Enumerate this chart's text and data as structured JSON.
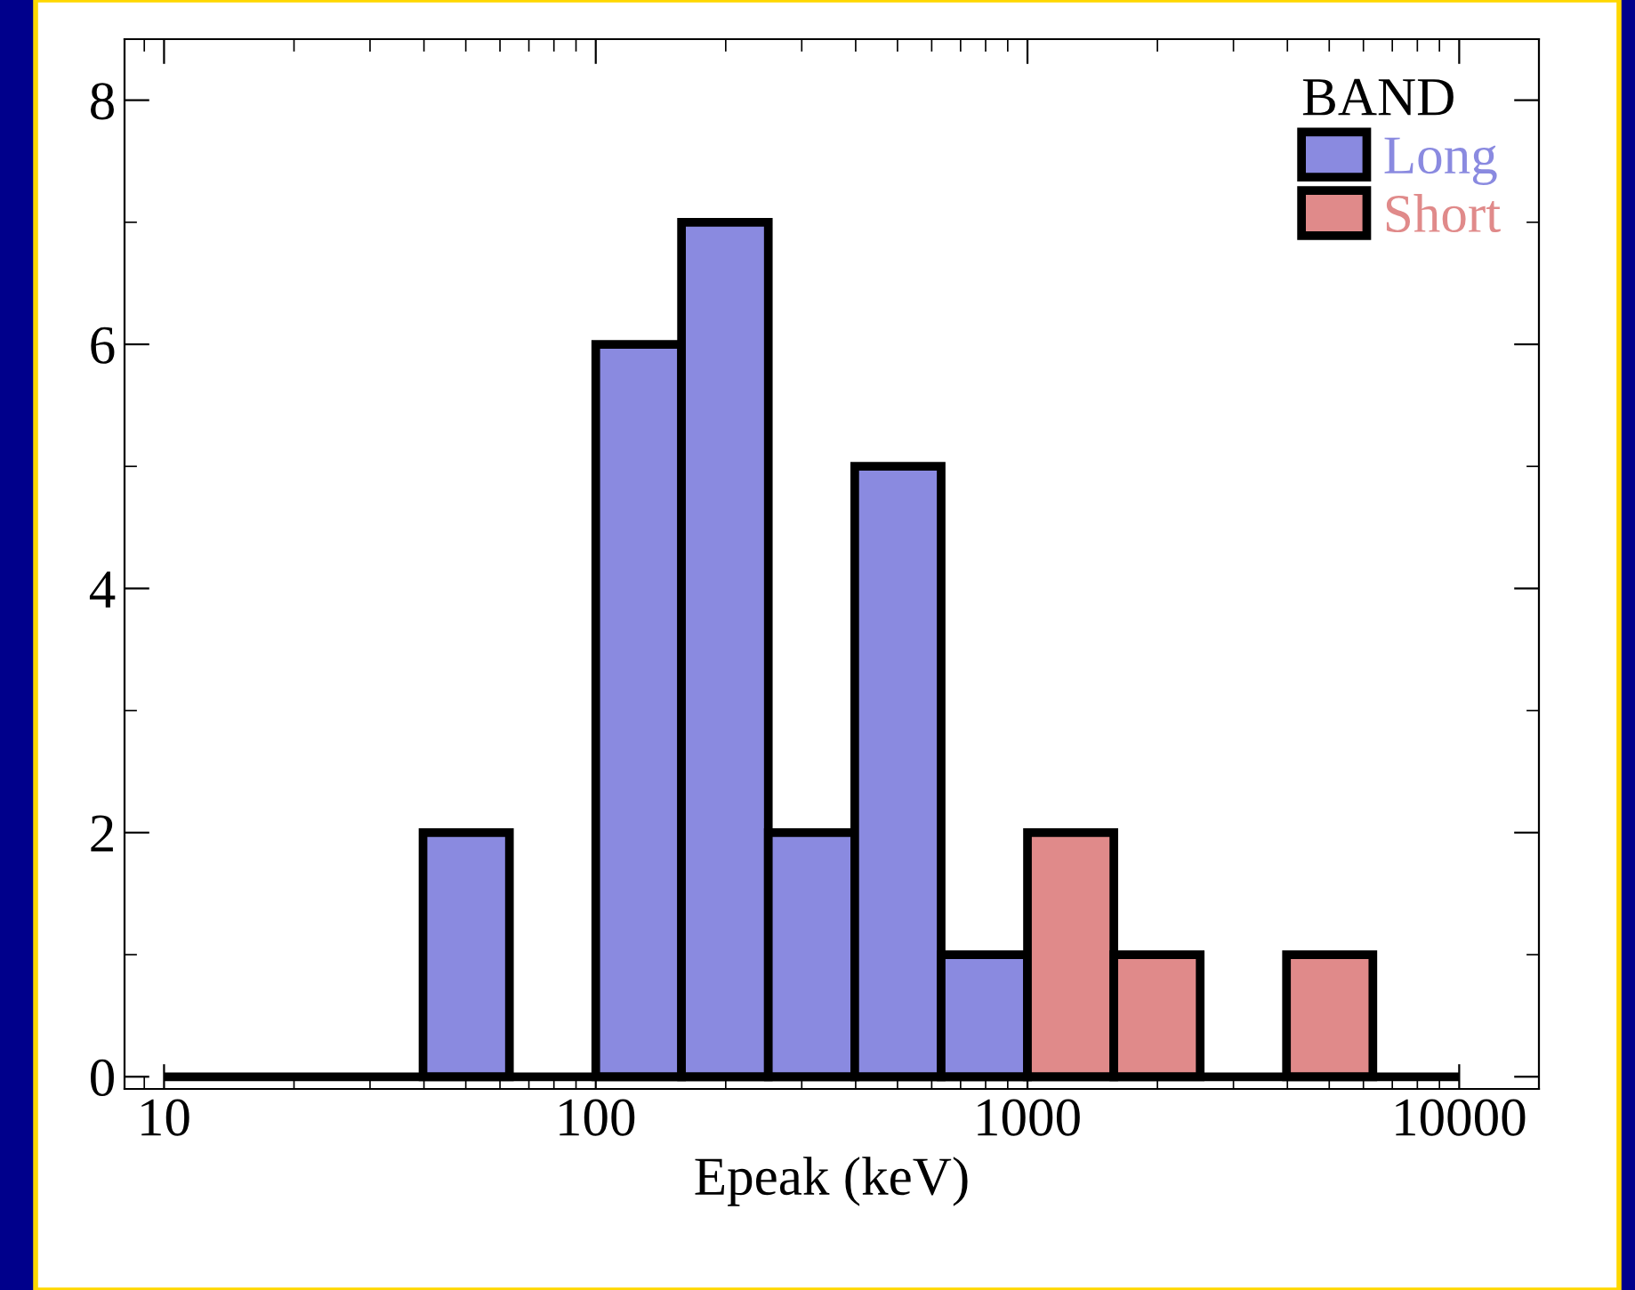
{
  "chart_data": {
    "type": "histogram",
    "xlabel": "Epeak (keV)",
    "log": "x",
    "bins": [
      39.8,
      63.1,
      100,
      158,
      251,
      398,
      631,
      1000,
      1585,
      2512,
      3981,
      6310
    ],
    "legend_title": "BAND",
    "series": [
      {
        "name": "Long",
        "color": "#8a8ae0",
        "values": [
          2,
          0,
          6,
          7,
          2,
          5,
          1,
          0,
          0,
          0,
          0
        ]
      },
      {
        "name": "Short",
        "color": "#e08a8a",
        "values": [
          0,
          0,
          0,
          0,
          0,
          0,
          0,
          2,
          1,
          0,
          1
        ]
      }
    ],
    "ref_lines": [
      {
        "axis": "y",
        "value": 0,
        "color": "#000000"
      }
    ],
    "xlim": [
      8.1,
      15300
    ],
    "xticks": [
      10,
      100,
      1000,
      10000
    ],
    "ylim": [
      -0.1,
      8.5
    ],
    "yticks": [
      0,
      2,
      4,
      6,
      8
    ],
    "grid": false,
    "legend": "top right"
  }
}
